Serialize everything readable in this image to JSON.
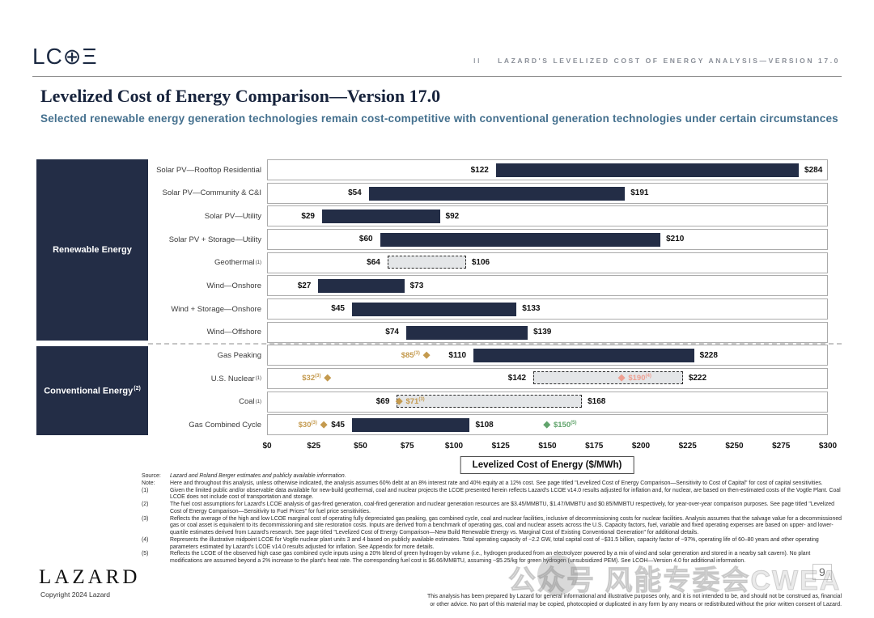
{
  "header": {
    "logo_parts": {
      "lc": "LC",
      "o": "⊕",
      "e": "Ξ"
    },
    "right_prefix": "II",
    "right_title": "LAZARD'S LEVELIZED COST OF ENERGY ANALYSIS—VERSION 17.0"
  },
  "title": "Levelized Cost of Energy Comparison—Version 17.0",
  "subtitle": "Selected renewable energy generation technologies remain cost-competitive with conventional generation technologies under certain circumstances",
  "chart_data": {
    "type": "bar",
    "orientation": "horizontal-range",
    "xlabel_box": "Levelized Cost of Energy ($/MWh)",
    "xlim": [
      0,
      300
    ],
    "x_tick_values": [
      0,
      25,
      50,
      75,
      100,
      125,
      150,
      175,
      200,
      225,
      250,
      275,
      300
    ],
    "x_tick_labels": [
      "$0",
      "$25",
      "$50",
      "$75",
      "$100",
      "$125",
      "$150",
      "$175",
      "$200",
      "$225",
      "$250",
      "$275",
      "$300"
    ],
    "diamond_glyph": "◆",
    "colors": {
      "bar_navy": "#232D46",
      "dashed_fill": "#E4E6E8",
      "gold": "#C49A4E",
      "salmon": "#EE9E90",
      "green": "#61A46C"
    },
    "groups": [
      {
        "label": "Renewable Energy",
        "sup": "",
        "rows": [
          {
            "label": "Solar PV—Rooftop Residential",
            "sup": "",
            "low": 122,
            "high": 284,
            "style": "solid",
            "markers": []
          },
          {
            "label": "Solar PV—Community & C&I",
            "sup": "",
            "low": 54,
            "high": 191,
            "style": "solid",
            "markers": []
          },
          {
            "label": "Solar PV—Utility",
            "sup": "",
            "low": 29,
            "high": 92,
            "style": "solid",
            "markers": []
          },
          {
            "label": "Solar PV + Storage—Utility",
            "sup": "",
            "low": 60,
            "high": 210,
            "style": "solid",
            "markers": []
          },
          {
            "label": "Geothermal",
            "sup": "(1)",
            "low": 64,
            "high": 106,
            "style": "dashed",
            "markers": []
          },
          {
            "label": "Wind—Onshore",
            "sup": "",
            "low": 27,
            "high": 73,
            "style": "solid",
            "markers": []
          },
          {
            "label": "Wind + Storage—Onshore",
            "sup": "",
            "low": 45,
            "high": 133,
            "style": "solid",
            "markers": []
          },
          {
            "label": "Wind—Offshore",
            "sup": "",
            "low": 74,
            "high": 139,
            "style": "solid",
            "markers": []
          }
        ]
      },
      {
        "label": "Conventional Energy",
        "sup": "(2)",
        "rows": [
          {
            "label": "Gas Peaking",
            "sup": "",
            "low": 110,
            "high": 228,
            "style": "solid",
            "markers": [
              {
                "value": 85,
                "label": "$85",
                "sup": "(3)",
                "color": "gold",
                "side": "left"
              }
            ]
          },
          {
            "label": "U.S. Nuclear",
            "sup": "(1)",
            "low": 142,
            "high": 222,
            "style": "dashed",
            "markers": [
              {
                "value": 32,
                "label": "$32",
                "sup": "(3)",
                "color": "gold",
                "side": "left"
              },
              {
                "value": 190,
                "label": "$190",
                "sup": "(4)",
                "color": "salmon",
                "side": "right"
              }
            ]
          },
          {
            "label": "Coal",
            "sup": "(1)",
            "low": 69,
            "high": 168,
            "style": "dashed",
            "markers": [
              {
                "value": 71,
                "label": "$71",
                "sup": "(3)",
                "color": "gold",
                "side": "right"
              }
            ]
          },
          {
            "label": "Gas Combined Cycle",
            "sup": "",
            "low": 45,
            "high": 108,
            "style": "solid",
            "markers": [
              {
                "value": 30,
                "label": "$30",
                "sup": "(3)",
                "color": "gold",
                "side": "left"
              },
              {
                "value": 150,
                "label": "$150",
                "sup": "(5)",
                "color": "green",
                "side": "right"
              }
            ]
          }
        ]
      }
    ]
  },
  "footnotes": [
    {
      "tag": "Source:",
      "italic": true,
      "text": "Lazard and Roland Berger estimates and publicly available information."
    },
    {
      "tag": "Note:",
      "italic": false,
      "text": "Here and throughout this analysis, unless otherwise indicated, the analysis assumes 60% debt at an 8% interest rate and 40% equity at a 12% cost. See page titled \"Levelized Cost of Energy Comparison—Sensitivity to Cost of Capital\" for cost of capital sensitivities."
    },
    {
      "tag": "(1)",
      "italic": false,
      "text": "Given the limited public and/or observable data available for new-build geothermal, coal and nuclear projects the LCOE presented herein reflects Lazard's LCOE v14.0 results adjusted for inflation and, for nuclear, are based on then-estimated costs of the Vogtle Plant. Coal LCOE does not include cost of transportation and storage."
    },
    {
      "tag": "(2)",
      "italic": false,
      "text": "The fuel cost assumptions for Lazard's LCOE analysis of gas-fired generation, coal-fired generation and nuclear generation resources are $3.45/MMBTU, $1.47/MMBTU and $0.85/MMBTU respectively, for year-over-year comparison purposes. See page titled \"Levelized Cost of Energy Comparison—Sensitivity to Fuel Prices\" for fuel price sensitivities."
    },
    {
      "tag": "(3)",
      "italic": false,
      "text": "Reflects the average of the high and low LCOE marginal cost of operating fully depreciated gas peaking, gas combined cycle, coal and nuclear facilities, inclusive of decommissioning costs for nuclear facilities. Analysis assumes that the salvage value for a decommissioned gas or coal asset is equivalent to its decommissioning and site restoration costs. Inputs are derived from a benchmark of operating gas, coal and nuclear assets across the U.S. Capacity factors, fuel, variable and fixed operating expenses are based on upper- and lower-quartile estimates derived from Lazard's research. See page titled \"Levelized Cost of Energy Comparison—New Build Renewable Energy vs. Marginal Cost of Existing Conventional Generation\" for additional details."
    },
    {
      "tag": "(4)",
      "italic": false,
      "text": "Represents the illustrative midpoint LCOE for Vogtle nuclear plant units 3 and 4 based on publicly available estimates. Total operating capacity of ~2.2 GW, total capital cost of ~$31.5 billion, capacity factor of ~97%, operating life of 60–80 years and other operating parameters estimated by Lazard's LCOE v14.0 results adjusted for inflation. See Appendix for more details."
    },
    {
      "tag": "(5)",
      "italic": false,
      "text": "Reflects the LCOE of the observed high case gas combined cycle inputs using a 20% blend of green hydrogen by volume (i.e., hydrogen produced from an electrolyzer powered by a mix of wind and solar generation and stored in a nearby salt cavern). No plant modifications are assumed beyond a 2% increase to the plant's heat rate. The corresponding fuel cost is $6.66/MMBTU, assuming ~$5.25/kg for green hydrogen (unsubsidized PEM). See LCOH—Version 4.0 for additional information."
    }
  ],
  "footer": {
    "lazard_logo": "LAZARD",
    "copyright": "Copyright 2024 Lazard",
    "page_number": "9",
    "watermark": "公众号 风能专委会CWEA",
    "disclaimer_lines": [
      "This analysis has been prepared by Lazard for general informational and illustrative purposes only, and it is not intended to be, and should not be construed as, financial",
      "or other advice. No part of this material may be copied, photocopied or duplicated in any form by any means or redistributed without the prior written consent of Lazard."
    ]
  }
}
